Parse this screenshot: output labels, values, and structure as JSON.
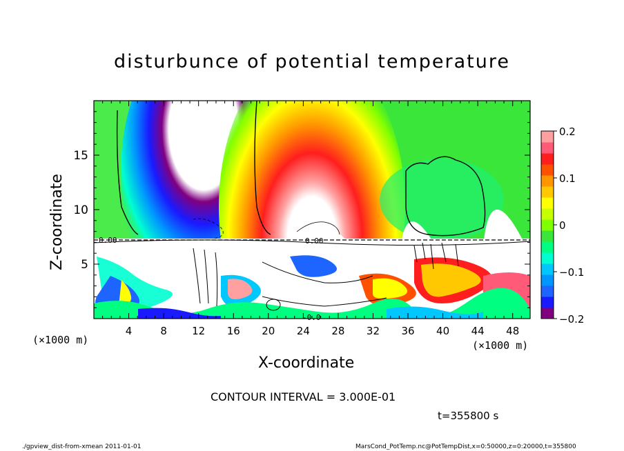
{
  "chart_data": {
    "type": "heatmap",
    "title": "disturbunce of potential temperature",
    "xlabel": "X-coordinate",
    "ylabel": "Z-coordinate",
    "x_unit": "(×1000 m)",
    "x_ticks": [
      4,
      8,
      12,
      16,
      20,
      24,
      28,
      32,
      36,
      40,
      44,
      48
    ],
    "y_ticks": [
      5,
      10,
      15
    ],
    "xlim": [
      0,
      50
    ],
    "ylim": [
      0,
      20
    ],
    "colorbar": {
      "ticks": [
        -0.2,
        -0.1,
        0,
        0.1,
        0.2
      ],
      "tick_labels": [
        "−0.2",
        "−0.1",
        "0",
        "0.1",
        "0.2"
      ],
      "range": [
        -0.2,
        0.2
      ],
      "colors": [
        "#800080",
        "#1a1aff",
        "#1e64ff",
        "#0096ff",
        "#00c8ff",
        "#00ffd0",
        "#00ff80",
        "#39e639",
        "#80ff00",
        "#c8ff00",
        "#ffff00",
        "#ffc800",
        "#ff9600",
        "#ff5000",
        "#ff1e1e",
        "#ff5a78",
        "#ffa0a0"
      ]
    },
    "features": [
      {
        "kind": "negative_anomaly",
        "x_center": 12.5,
        "z_range": [
          7.5,
          20
        ],
        "min": -0.2
      },
      {
        "kind": "positive_anomaly",
        "x_center": 25,
        "z_range": [
          7.5,
          20
        ],
        "max": 0.2
      },
      {
        "kind": "zero_contour_region",
        "x_range": [
          36,
          45
        ],
        "z_range": [
          8,
          15
        ]
      }
    ],
    "contour_labels": [
      "0.00",
      "0.00",
      "-0.0"
    ],
    "contour_interval": "CONTOUR INTERVAL = 3.000E-01",
    "time": "t=355800 s"
  },
  "footer": {
    "left": "./gpview_dist-from-xmean  2011-01-01",
    "right": "MarsCond_PotTemp.nc@PotTempDist,x=0:50000,z=0:20000,t=355800"
  }
}
